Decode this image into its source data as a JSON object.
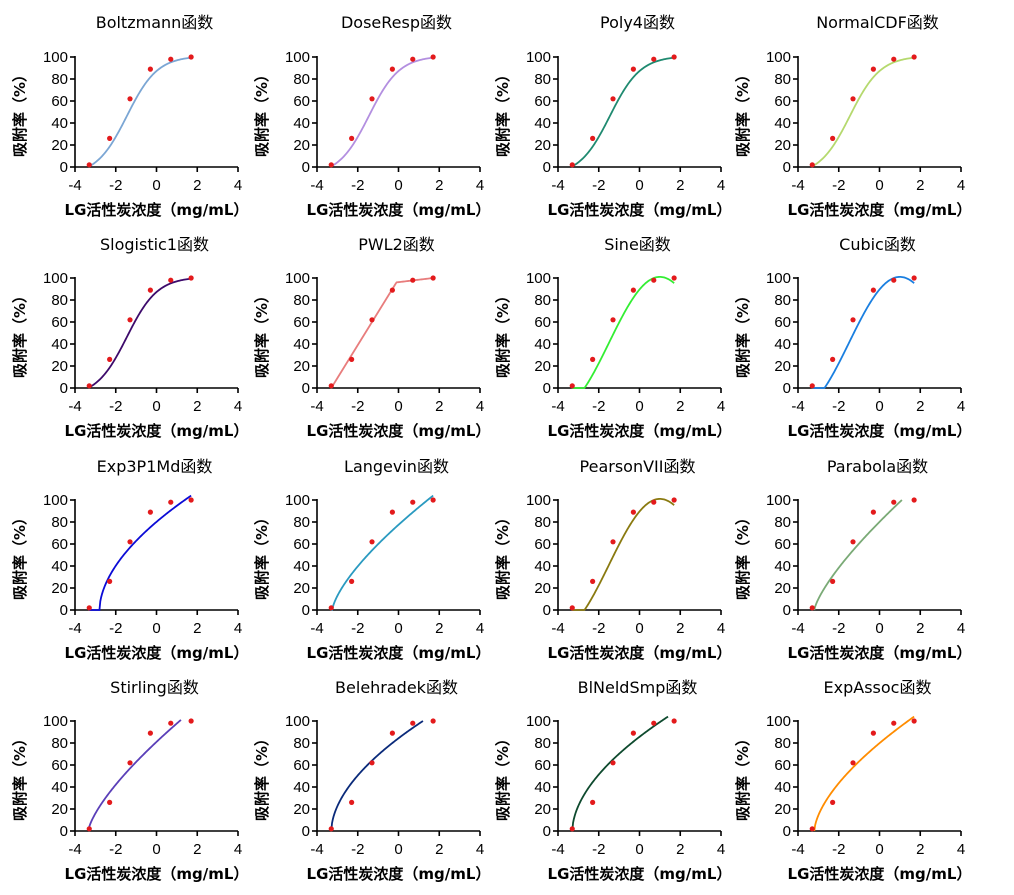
{
  "figure": {
    "layout": "4x4 grid",
    "background": "#ffffff"
  },
  "chart_data": [
    {
      "type": "line",
      "title": "Boltzmann函数",
      "xlabel": "LG活性炭浓度（mg/mL）",
      "ylabel": "吸附率（%）",
      "xlim": [
        -4,
        4
      ],
      "ylim": [
        0,
        100
      ],
      "xticks": [
        "-4",
        "-2",
        "0",
        "2",
        "4"
      ],
      "yticks": [
        "0",
        "20",
        "40",
        "60",
        "80",
        "100"
      ],
      "points": {
        "x": [
          -3.3,
          -2.3,
          -1.3,
          -0.3,
          0.7,
          1.7
        ],
        "y": [
          2,
          26,
          62,
          89,
          98,
          100
        ]
      },
      "fit": {
        "model": "boltzmann",
        "x_range": [
          -3.3,
          1.7
        ],
        "params": {
          "A1": -8,
          "A2": 101,
          "x0": -1.45,
          "dx": 0.75
        }
      },
      "colors": {
        "curve": "#7ba6d4",
        "point_fill": "#e31a1c"
      }
    },
    {
      "type": "line",
      "title": "DoseResp函数",
      "xlabel": "LG活性炭浓度（mg/mL）",
      "ylabel": "吸附率（%）",
      "xlim": [
        -4,
        4
      ],
      "ylim": [
        0,
        100
      ],
      "xticks": [
        "-4",
        "-2",
        "0",
        "2",
        "4"
      ],
      "yticks": [
        "0",
        "20",
        "40",
        "60",
        "80",
        "100"
      ],
      "points": {
        "x": [
          -3.3,
          -2.3,
          -1.3,
          -0.3,
          0.7,
          1.7
        ],
        "y": [
          2,
          26,
          62,
          89,
          98,
          100
        ]
      },
      "fit": {
        "model": "boltzmann",
        "x_range": [
          -3.3,
          1.7
        ],
        "params": {
          "A1": -8,
          "A2": 101,
          "x0": -1.45,
          "dx": 0.75
        }
      },
      "colors": {
        "curve": "#b38fe0",
        "point_fill": "#e31a1c"
      }
    },
    {
      "type": "line",
      "title": "Poly4函数",
      "xlabel": "LG活性炭浓度（mg/mL）",
      "ylabel": "吸附率（%）",
      "xlim": [
        -4,
        4
      ],
      "ylim": [
        0,
        100
      ],
      "xticks": [
        "-4",
        "-2",
        "0",
        "2",
        "4"
      ],
      "yticks": [
        "0",
        "20",
        "40",
        "60",
        "80",
        "100"
      ],
      "points": {
        "x": [
          -3.3,
          -2.3,
          -1.3,
          -0.3,
          0.7,
          1.7
        ],
        "y": [
          2,
          26,
          62,
          89,
          98,
          100
        ]
      },
      "fit": {
        "model": "boltzmann",
        "x_range": [
          -3.3,
          1.7
        ],
        "params": {
          "A1": -8,
          "A2": 101,
          "x0": -1.45,
          "dx": 0.75
        }
      },
      "colors": {
        "curve": "#1f8a70",
        "point_fill": "#e31a1c"
      }
    },
    {
      "type": "line",
      "title": "NormalCDF函数",
      "xlabel": "LG活性炭浓度（mg/mL）",
      "ylabel": "吸附率（%）",
      "xlim": [
        -4,
        4
      ],
      "ylim": [
        0,
        100
      ],
      "xticks": [
        "-4",
        "-2",
        "0",
        "2",
        "4"
      ],
      "yticks": [
        "0",
        "20",
        "40",
        "60",
        "80",
        "100"
      ],
      "points": {
        "x": [
          -3.3,
          -2.3,
          -1.3,
          -0.3,
          0.7,
          1.7
        ],
        "y": [
          2,
          26,
          62,
          89,
          98,
          100
        ]
      },
      "fit": {
        "model": "boltzmann",
        "x_range": [
          -3.3,
          1.7
        ],
        "params": {
          "A1": -8,
          "A2": 101,
          "x0": -1.45,
          "dx": 0.75
        }
      },
      "colors": {
        "curve": "#b5d96e",
        "point_fill": "#e31a1c"
      }
    },
    {
      "type": "line",
      "title": "Slogistic1函数",
      "xlabel": "LG活性炭浓度（mg/mL）",
      "ylabel": "吸附率（%）",
      "xlim": [
        -4,
        4
      ],
      "ylim": [
        0,
        100
      ],
      "xticks": [
        "-4",
        "-2",
        "0",
        "2",
        "4"
      ],
      "yticks": [
        "0",
        "20",
        "40",
        "60",
        "80",
        "100"
      ],
      "points": {
        "x": [
          -3.3,
          -2.3,
          -1.3,
          -0.3,
          0.7,
          1.7
        ],
        "y": [
          2,
          26,
          62,
          89,
          98,
          100
        ]
      },
      "fit": {
        "model": "boltzmann",
        "x_range": [
          -3.3,
          1.7
        ],
        "params": {
          "A1": -8,
          "A2": 101,
          "x0": -1.45,
          "dx": 0.75
        }
      },
      "colors": {
        "curve": "#3d0a6b",
        "point_fill": "#e31a1c"
      }
    },
    {
      "type": "line",
      "title": "PWL2函数",
      "xlabel": "LG活性炭浓度（mg/mL）",
      "ylabel": "吸附率（%）",
      "xlim": [
        -4,
        4
      ],
      "ylim": [
        0,
        100
      ],
      "xticks": [
        "-4",
        "-2",
        "0",
        "2",
        "4"
      ],
      "yticks": [
        "0",
        "20",
        "40",
        "60",
        "80",
        "100"
      ],
      "points": {
        "x": [
          -3.3,
          -2.3,
          -1.3,
          -0.3,
          0.7,
          1.7
        ],
        "y": [
          2,
          26,
          62,
          89,
          98,
          100
        ]
      },
      "fit": {
        "model": "pwl",
        "x_range": [
          -3.3,
          1.7
        ],
        "params": {
          "knots": [
            [
              -3.3,
              0
            ],
            [
              -0.1,
              96
            ],
            [
              1.7,
              100
            ]
          ]
        }
      },
      "colors": {
        "curve": "#e87d7d",
        "point_fill": "#e31a1c"
      }
    },
    {
      "type": "line",
      "title": "Sine函数",
      "xlabel": "LG活性炭浓度（mg/mL）",
      "ylabel": "吸附率（%）",
      "xlim": [
        -4,
        4
      ],
      "ylim": [
        0,
        100
      ],
      "xticks": [
        "-4",
        "-2",
        "0",
        "2",
        "4"
      ],
      "yticks": [
        "0",
        "20",
        "40",
        "60",
        "80",
        "100"
      ],
      "points": {
        "x": [
          -3.3,
          -2.3,
          -1.3,
          -0.3,
          0.7,
          1.7
        ],
        "y": [
          2,
          26,
          62,
          89,
          98,
          100
        ]
      },
      "fit": {
        "model": "sine",
        "x_range": [
          -3.3,
          1.7
        ],
        "params": {
          "y0": 41,
          "A": 60,
          "xc": -1.5,
          "w": 5
        }
      },
      "colors": {
        "curve": "#33ee33",
        "point_fill": "#e31a1c"
      }
    },
    {
      "type": "line",
      "title": "Cubic函数",
      "xlabel": "LG活性炭浓度（mg/mL）",
      "ylabel": "吸附率（%）",
      "xlim": [
        -4,
        4
      ],
      "ylim": [
        0,
        100
      ],
      "xticks": [
        "-4",
        "-2",
        "0",
        "2",
        "4"
      ],
      "yticks": [
        "0",
        "20",
        "40",
        "60",
        "80",
        "100"
      ],
      "points": {
        "x": [
          -3.3,
          -2.3,
          -1.3,
          -0.3,
          0.7,
          1.7
        ],
        "y": [
          2,
          26,
          62,
          89,
          98,
          100
        ]
      },
      "fit": {
        "model": "sine",
        "x_range": [
          -3.3,
          1.7
        ],
        "params": {
          "y0": 41,
          "A": 60,
          "xc": -1.5,
          "w": 5
        }
      },
      "colors": {
        "curve": "#1a7fe0",
        "point_fill": "#e31a1c"
      }
    },
    {
      "type": "line",
      "title": "Exp3P1Md函数",
      "xlabel": "LG活性炭浓度（mg/mL）",
      "ylabel": "吸附率（%）",
      "xlim": [
        -4,
        4
      ],
      "ylim": [
        0,
        100
      ],
      "xticks": [
        "-4",
        "-2",
        "0",
        "2",
        "4"
      ],
      "yticks": [
        "0",
        "20",
        "40",
        "60",
        "80",
        "100"
      ],
      "points": {
        "x": [
          -3.3,
          -2.3,
          -1.3,
          -0.3,
          0.7,
          1.7
        ],
        "y": [
          2,
          26,
          62,
          89,
          98,
          100
        ]
      },
      "fit": {
        "model": "concave",
        "x_range": [
          -3.3,
          1.7
        ],
        "params": {
          "x0": -2.8,
          "x1": 1.7,
          "ymax": 104,
          "p": 0.55
        }
      },
      "colors": {
        "curve": "#0b0bd6",
        "point_fill": "#e31a1c"
      }
    },
    {
      "type": "line",
      "title": "Langevin函数",
      "xlabel": "LG活性炭浓度（mg/mL）",
      "ylabel": "吸附率（%）",
      "xlim": [
        -4,
        4
      ],
      "ylim": [
        0,
        100
      ],
      "xticks": [
        "-4",
        "-2",
        "0",
        "2",
        "4"
      ],
      "yticks": [
        "0",
        "20",
        "40",
        "60",
        "80",
        "100"
      ],
      "points": {
        "x": [
          -3.3,
          -2.3,
          -1.3,
          -0.3,
          0.7,
          1.7
        ],
        "y": [
          2,
          26,
          62,
          89,
          98,
          100
        ]
      },
      "fit": {
        "model": "concave",
        "x_range": [
          -3.3,
          1.7
        ],
        "params": {
          "x0": -3.25,
          "x1": 1.7,
          "ymax": 104,
          "p": 0.7
        }
      },
      "colors": {
        "curve": "#2a9ac0",
        "point_fill": "#e31a1c"
      }
    },
    {
      "type": "line",
      "title": "PearsonVII函数",
      "xlabel": "LG活性炭浓度（mg/mL）",
      "ylabel": "吸附率（%）",
      "xlim": [
        -4,
        4
      ],
      "ylim": [
        0,
        100
      ],
      "xticks": [
        "-4",
        "-2",
        "0",
        "2",
        "4"
      ],
      "yticks": [
        "0",
        "20",
        "40",
        "60",
        "80",
        "100"
      ],
      "points": {
        "x": [
          -3.3,
          -2.3,
          -1.3,
          -0.3,
          0.7,
          1.7
        ],
        "y": [
          2,
          26,
          62,
          89,
          98,
          100
        ]
      },
      "fit": {
        "model": "sine",
        "x_range": [
          -3.3,
          1.7
        ],
        "params": {
          "y0": 41,
          "A": 60,
          "xc": -1.5,
          "w": 5
        }
      },
      "colors": {
        "curve": "#8a7a10",
        "point_fill": "#e31a1c"
      }
    },
    {
      "type": "line",
      "title": "Parabola函数",
      "xlabel": "LG活性炭浓度（mg/mL）",
      "ylabel": "吸附率（%）",
      "xlim": [
        -4,
        4
      ],
      "ylim": [
        0,
        100
      ],
      "xticks": [
        "-4",
        "-2",
        "0",
        "2",
        "4"
      ],
      "yticks": [
        "0",
        "20",
        "40",
        "60",
        "80",
        "100"
      ],
      "points": {
        "x": [
          -3.3,
          -2.3,
          -1.3,
          -0.3,
          0.7,
          1.7
        ],
        "y": [
          2,
          26,
          62,
          89,
          98,
          100
        ]
      },
      "fit": {
        "model": "concave",
        "x_range": [
          -3.2,
          1.1
        ],
        "params": {
          "x0": -3.2,
          "x1": 1.1,
          "ymax": 100,
          "p": 0.75
        }
      },
      "colors": {
        "curve": "#7aaa76",
        "point_fill": "#e31a1c"
      }
    },
    {
      "type": "line",
      "title": "Stirling函数",
      "xlabel": "LG活性炭浓度（mg/mL）",
      "ylabel": "吸附率（%）",
      "xlim": [
        -4,
        4
      ],
      "ylim": [
        0,
        100
      ],
      "xticks": [
        "-4",
        "-2",
        "0",
        "2",
        "4"
      ],
      "yticks": [
        "0",
        "20",
        "40",
        "60",
        "80",
        "100"
      ],
      "points": {
        "x": [
          -3.3,
          -2.3,
          -1.3,
          -0.3,
          0.7,
          1.7
        ],
        "y": [
          2,
          26,
          62,
          89,
          98,
          100
        ]
      },
      "fit": {
        "model": "concave",
        "x_range": [
          -3.3,
          1.2
        ],
        "params": {
          "x0": -3.35,
          "x1": 1.2,
          "ymax": 101,
          "p": 0.72
        }
      },
      "colors": {
        "curve": "#5a3fb8",
        "point_fill": "#e31a1c"
      }
    },
    {
      "type": "line",
      "title": "Belehradek函数",
      "xlabel": "LG活性炭浓度（mg/mL）",
      "ylabel": "吸附率（%）",
      "xlim": [
        -4,
        4
      ],
      "ylim": [
        0,
        100
      ],
      "xticks": [
        "-4",
        "-2",
        "0",
        "2",
        "4"
      ],
      "yticks": [
        "0",
        "20",
        "40",
        "60",
        "80",
        "100"
      ],
      "points": {
        "x": [
          -3.3,
          -2.3,
          -1.3,
          -0.3,
          0.7,
          1.7
        ],
        "y": [
          2,
          26,
          62,
          89,
          98,
          100
        ]
      },
      "fit": {
        "model": "concave",
        "x_range": [
          -3.3,
          1.2
        ],
        "params": {
          "x0": -3.3,
          "x1": 1.2,
          "ymax": 100,
          "p": 0.55
        }
      },
      "colors": {
        "curve": "#0a2a7a",
        "point_fill": "#e31a1c"
      }
    },
    {
      "type": "line",
      "title": "BlNeldSmp函数",
      "xlabel": "LG活性炭浓度（mg/mL）",
      "ylabel": "吸附率（%）",
      "xlim": [
        -4,
        4
      ],
      "ylim": [
        0,
        100
      ],
      "xticks": [
        "-4",
        "-2",
        "0",
        "2",
        "4"
      ],
      "yticks": [
        "0",
        "20",
        "40",
        "60",
        "80",
        "100"
      ],
      "points": {
        "x": [
          -3.3,
          -2.3,
          -1.3,
          -0.3,
          0.7,
          1.7
        ],
        "y": [
          2,
          26,
          62,
          89,
          98,
          100
        ]
      },
      "fit": {
        "model": "concave",
        "x_range": [
          -3.3,
          1.4
        ],
        "params": {
          "x0": -3.3,
          "x1": 1.4,
          "ymax": 104,
          "p": 0.55
        }
      },
      "colors": {
        "curve": "#0e4a2e",
        "point_fill": "#e31a1c"
      }
    },
    {
      "type": "line",
      "title": "ExpAssoc函数",
      "xlabel": "LG活性炭浓度（mg/mL）",
      "ylabel": "吸附率（%）",
      "xlim": [
        -4,
        4
      ],
      "ylim": [
        0,
        100
      ],
      "xticks": [
        "-4",
        "-2",
        "0",
        "2",
        "4"
      ],
      "yticks": [
        "0",
        "20",
        "40",
        "60",
        "80",
        "100"
      ],
      "points": {
        "x": [
          -3.3,
          -2.3,
          -1.3,
          -0.3,
          0.7,
          1.7
        ],
        "y": [
          2,
          26,
          62,
          89,
          98,
          100
        ]
      },
      "fit": {
        "model": "concave",
        "x_range": [
          -3.2,
          1.7
        ],
        "params": {
          "x0": -3.2,
          "x1": 1.7,
          "ymax": 104,
          "p": 0.62
        }
      },
      "colors": {
        "curve": "#ff8c00",
        "point_fill": "#e31a1c"
      }
    }
  ]
}
